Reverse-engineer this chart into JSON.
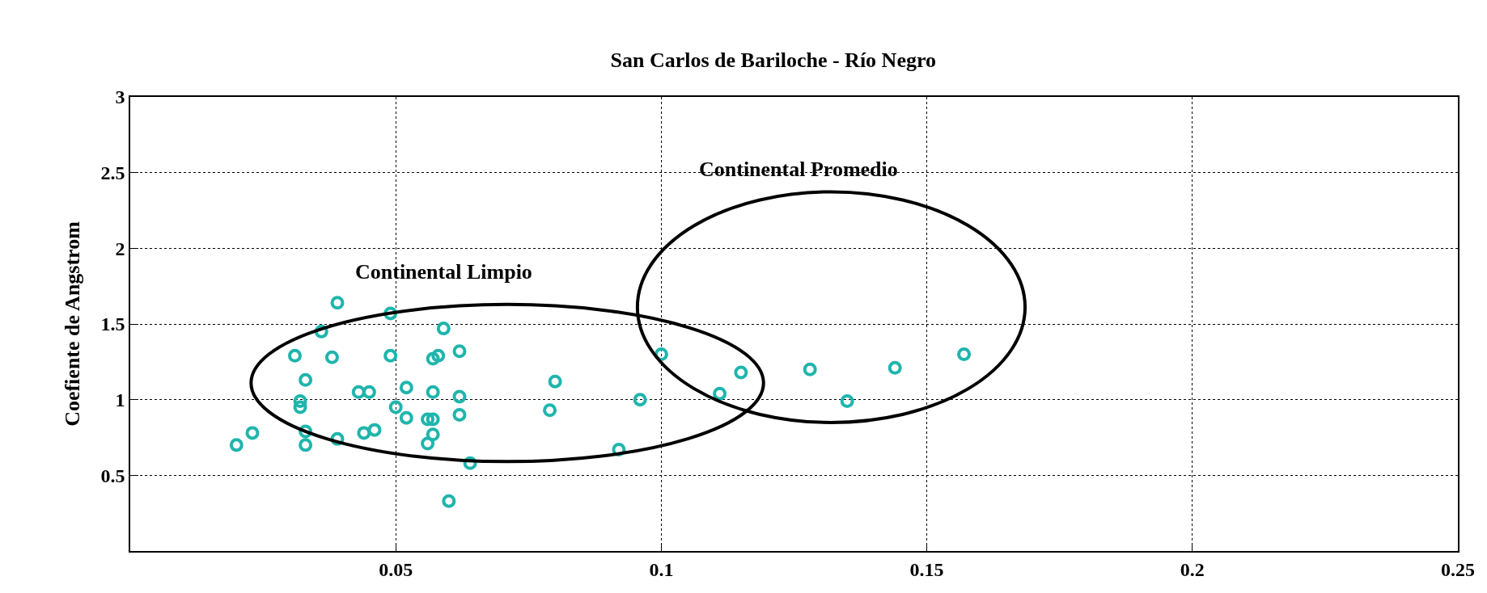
{
  "chart_data": {
    "type": "scatter",
    "title": "San Carlos de Bariloche - Río Negro",
    "ylabel": "Coefiente de Angstrom",
    "x": [
      0.02,
      0.023,
      0.031,
      0.036,
      0.039,
      0.038,
      0.033,
      0.032,
      0.032,
      0.033,
      0.033,
      0.039,
      0.043,
      0.045,
      0.044,
      0.046,
      0.049,
      0.049,
      0.05,
      0.052,
      0.052,
      0.056,
      0.057,
      0.056,
      0.057,
      0.057,
      0.057,
      0.058,
      0.059,
      0.062,
      0.062,
      0.062,
      0.064,
      0.06,
      0.079,
      0.08,
      0.092,
      0.096,
      0.1,
      0.111,
      0.115,
      0.128,
      0.135,
      0.144,
      0.157
    ],
    "values": [
      0.7,
      0.78,
      1.29,
      1.45,
      1.64,
      1.28,
      1.13,
      0.99,
      0.95,
      0.79,
      0.7,
      0.74,
      1.05,
      1.05,
      0.78,
      0.8,
      1.29,
      1.57,
      0.95,
      1.08,
      0.88,
      0.87,
      0.87,
      0.71,
      0.77,
      1.05,
      1.27,
      1.29,
      1.47,
      1.32,
      1.02,
      0.9,
      0.58,
      0.33,
      0.93,
      1.12,
      0.67,
      1.0,
      1.3,
      1.04,
      1.18,
      1.2,
      0.99,
      1.21,
      1.3
    ],
    "color": "#1fb5ad",
    "marker": "circle",
    "grid": true,
    "xlim": [
      0,
      0.25
    ],
    "xticks": [
      0.05,
      0.1,
      0.15,
      0.2,
      0.25
    ],
    "ylim": [
      0,
      3
    ],
    "yticks": [
      0.5,
      1,
      1.5,
      2,
      2.5,
      3
    ],
    "annotations": [
      "Continental Limpio",
      "Continental Promedio"
    ]
  }
}
